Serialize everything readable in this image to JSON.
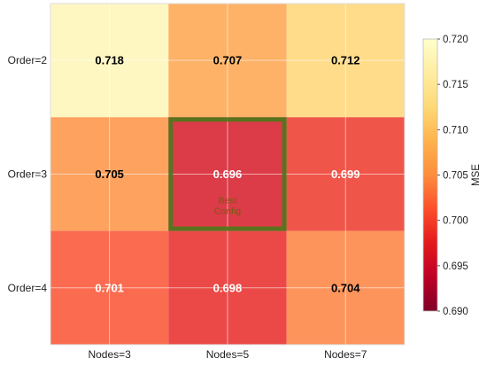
{
  "chart_data": {
    "type": "heatmap",
    "title": "",
    "x_categories": [
      "Nodes=3",
      "Nodes=5",
      "Nodes=7"
    ],
    "y_categories": [
      "Order=2",
      "Order=3",
      "Order=4"
    ],
    "values": [
      [
        0.718,
        0.707,
        0.712
      ],
      [
        0.705,
        0.696,
        0.699
      ],
      [
        0.701,
        0.698,
        0.704
      ]
    ],
    "value_labels": [
      [
        "0.718",
        "0.707",
        "0.712"
      ],
      [
        "0.705",
        "0.696",
        "0.699"
      ],
      [
        "0.701",
        "0.698",
        "0.704"
      ]
    ],
    "colorbar": {
      "label": "MSE",
      "range": [
        0.69,
        0.72
      ],
      "ticks": [
        "0.690",
        "0.695",
        "0.700",
        "0.705",
        "0.710",
        "0.715",
        "0.720"
      ],
      "colormap": "YlOrRd_r"
    },
    "highlight": {
      "row": 1,
      "col": 1,
      "color": "#4a7a1a",
      "annotation_lines": [
        "Best",
        "Config"
      ]
    },
    "grid": true
  }
}
